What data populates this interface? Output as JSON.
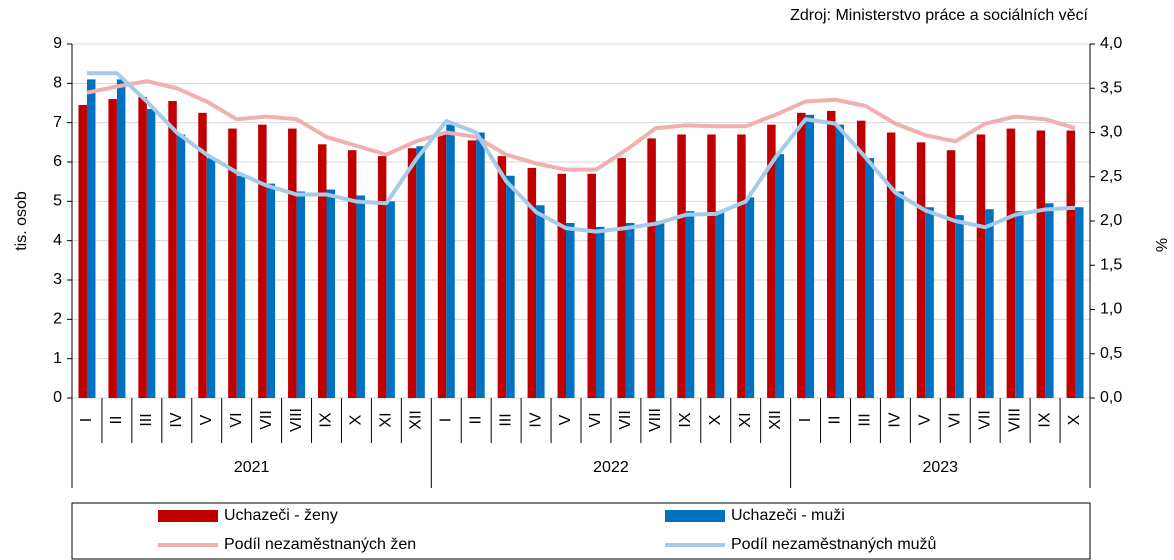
{
  "chart_data": {
    "type": "bar",
    "source": "Zdroj: Ministerstvo práce a sociálních věcí",
    "ylabel": "tis. osob",
    "y2label": "%",
    "categories": [
      "I",
      "II",
      "III",
      "IV",
      "V",
      "VI",
      "VII",
      "VIII",
      "IX",
      "X",
      "XI",
      "XII",
      "I",
      "II",
      "III",
      "IV",
      "V",
      "VI",
      "VII",
      "VIII",
      "IX",
      "X",
      "XI",
      "XII",
      "I",
      "II",
      "III",
      "IV",
      "V",
      "VI",
      "VII",
      "VIII",
      "IX",
      "X"
    ],
    "category_groups": [
      "2021",
      "2022",
      "2023"
    ],
    "ylim": [
      0,
      9
    ],
    "yticks": [
      0,
      1,
      2,
      3,
      4,
      5,
      6,
      7,
      8,
      9
    ],
    "y2lim": [
      0,
      4
    ],
    "y2ticks": [
      {
        "value": 0,
        "label": "0,0"
      },
      {
        "value": 0.5,
        "label": "0,5"
      },
      {
        "value": 1,
        "label": "1,0"
      },
      {
        "value": 1.5,
        "label": "1,5"
      },
      {
        "value": 2,
        "label": "2,0"
      },
      {
        "value": 2.5,
        "label": "2,5"
      },
      {
        "value": 3,
        "label": "3,0"
      },
      {
        "value": 3.5,
        "label": "3,5"
      },
      {
        "value": 4,
        "label": "4,0"
      }
    ],
    "grid": true,
    "series": [
      {
        "name": "Uchazeči - ženy",
        "type": "bar",
        "color": "#c00000",
        "values": [
          7.45,
          7.6,
          7.65,
          7.55,
          7.25,
          6.85,
          6.95,
          6.85,
          6.45,
          6.3,
          6.15,
          6.35,
          6.75,
          6.55,
          6.15,
          5.85,
          5.7,
          5.7,
          6.1,
          6.6,
          6.7,
          6.7,
          6.7,
          6.95,
          7.25,
          7.3,
          7.05,
          6.75,
          6.5,
          6.3,
          6.7,
          6.85,
          6.8,
          6.8
        ]
      },
      {
        "name": "Uchazeči - muži",
        "type": "bar",
        "color": "#0070c0",
        "values": [
          8.1,
          8.1,
          7.35,
          6.7,
          6.1,
          5.65,
          5.45,
          5.25,
          5.3,
          5.15,
          5.0,
          6.4,
          6.95,
          6.75,
          5.65,
          4.9,
          4.45,
          4.35,
          4.45,
          4.5,
          4.75,
          4.75,
          5.1,
          6.2,
          7.2,
          6.95,
          6.1,
          5.25,
          4.85,
          4.65,
          4.8,
          4.75,
          4.95,
          4.85
        ]
      },
      {
        "name": "Podíl nezaměstnaných žen",
        "type": "line",
        "axis": "y2",
        "color": "#f0b0b0",
        "values": [
          3.45,
          3.52,
          3.58,
          3.5,
          3.35,
          3.15,
          3.18,
          3.15,
          2.95,
          2.85,
          2.75,
          2.9,
          3.0,
          2.95,
          2.75,
          2.65,
          2.58,
          2.58,
          2.8,
          3.05,
          3.08,
          3.07,
          3.07,
          3.2,
          3.35,
          3.37,
          3.3,
          3.1,
          2.97,
          2.9,
          3.1,
          3.18,
          3.15,
          3.05
        ]
      },
      {
        "name": "Podíl nezaměstnaných mužů",
        "type": "line",
        "axis": "y2",
        "color": "#a6cbe8",
        "values": [
          3.67,
          3.67,
          3.35,
          3.0,
          2.75,
          2.55,
          2.4,
          2.3,
          2.3,
          2.22,
          2.2,
          2.7,
          3.13,
          3.0,
          2.45,
          2.1,
          1.92,
          1.88,
          1.92,
          1.97,
          2.07,
          2.08,
          2.22,
          2.72,
          3.15,
          3.1,
          2.72,
          2.32,
          2.12,
          2.0,
          1.93,
          2.07,
          2.13,
          2.15
        ]
      }
    ]
  }
}
